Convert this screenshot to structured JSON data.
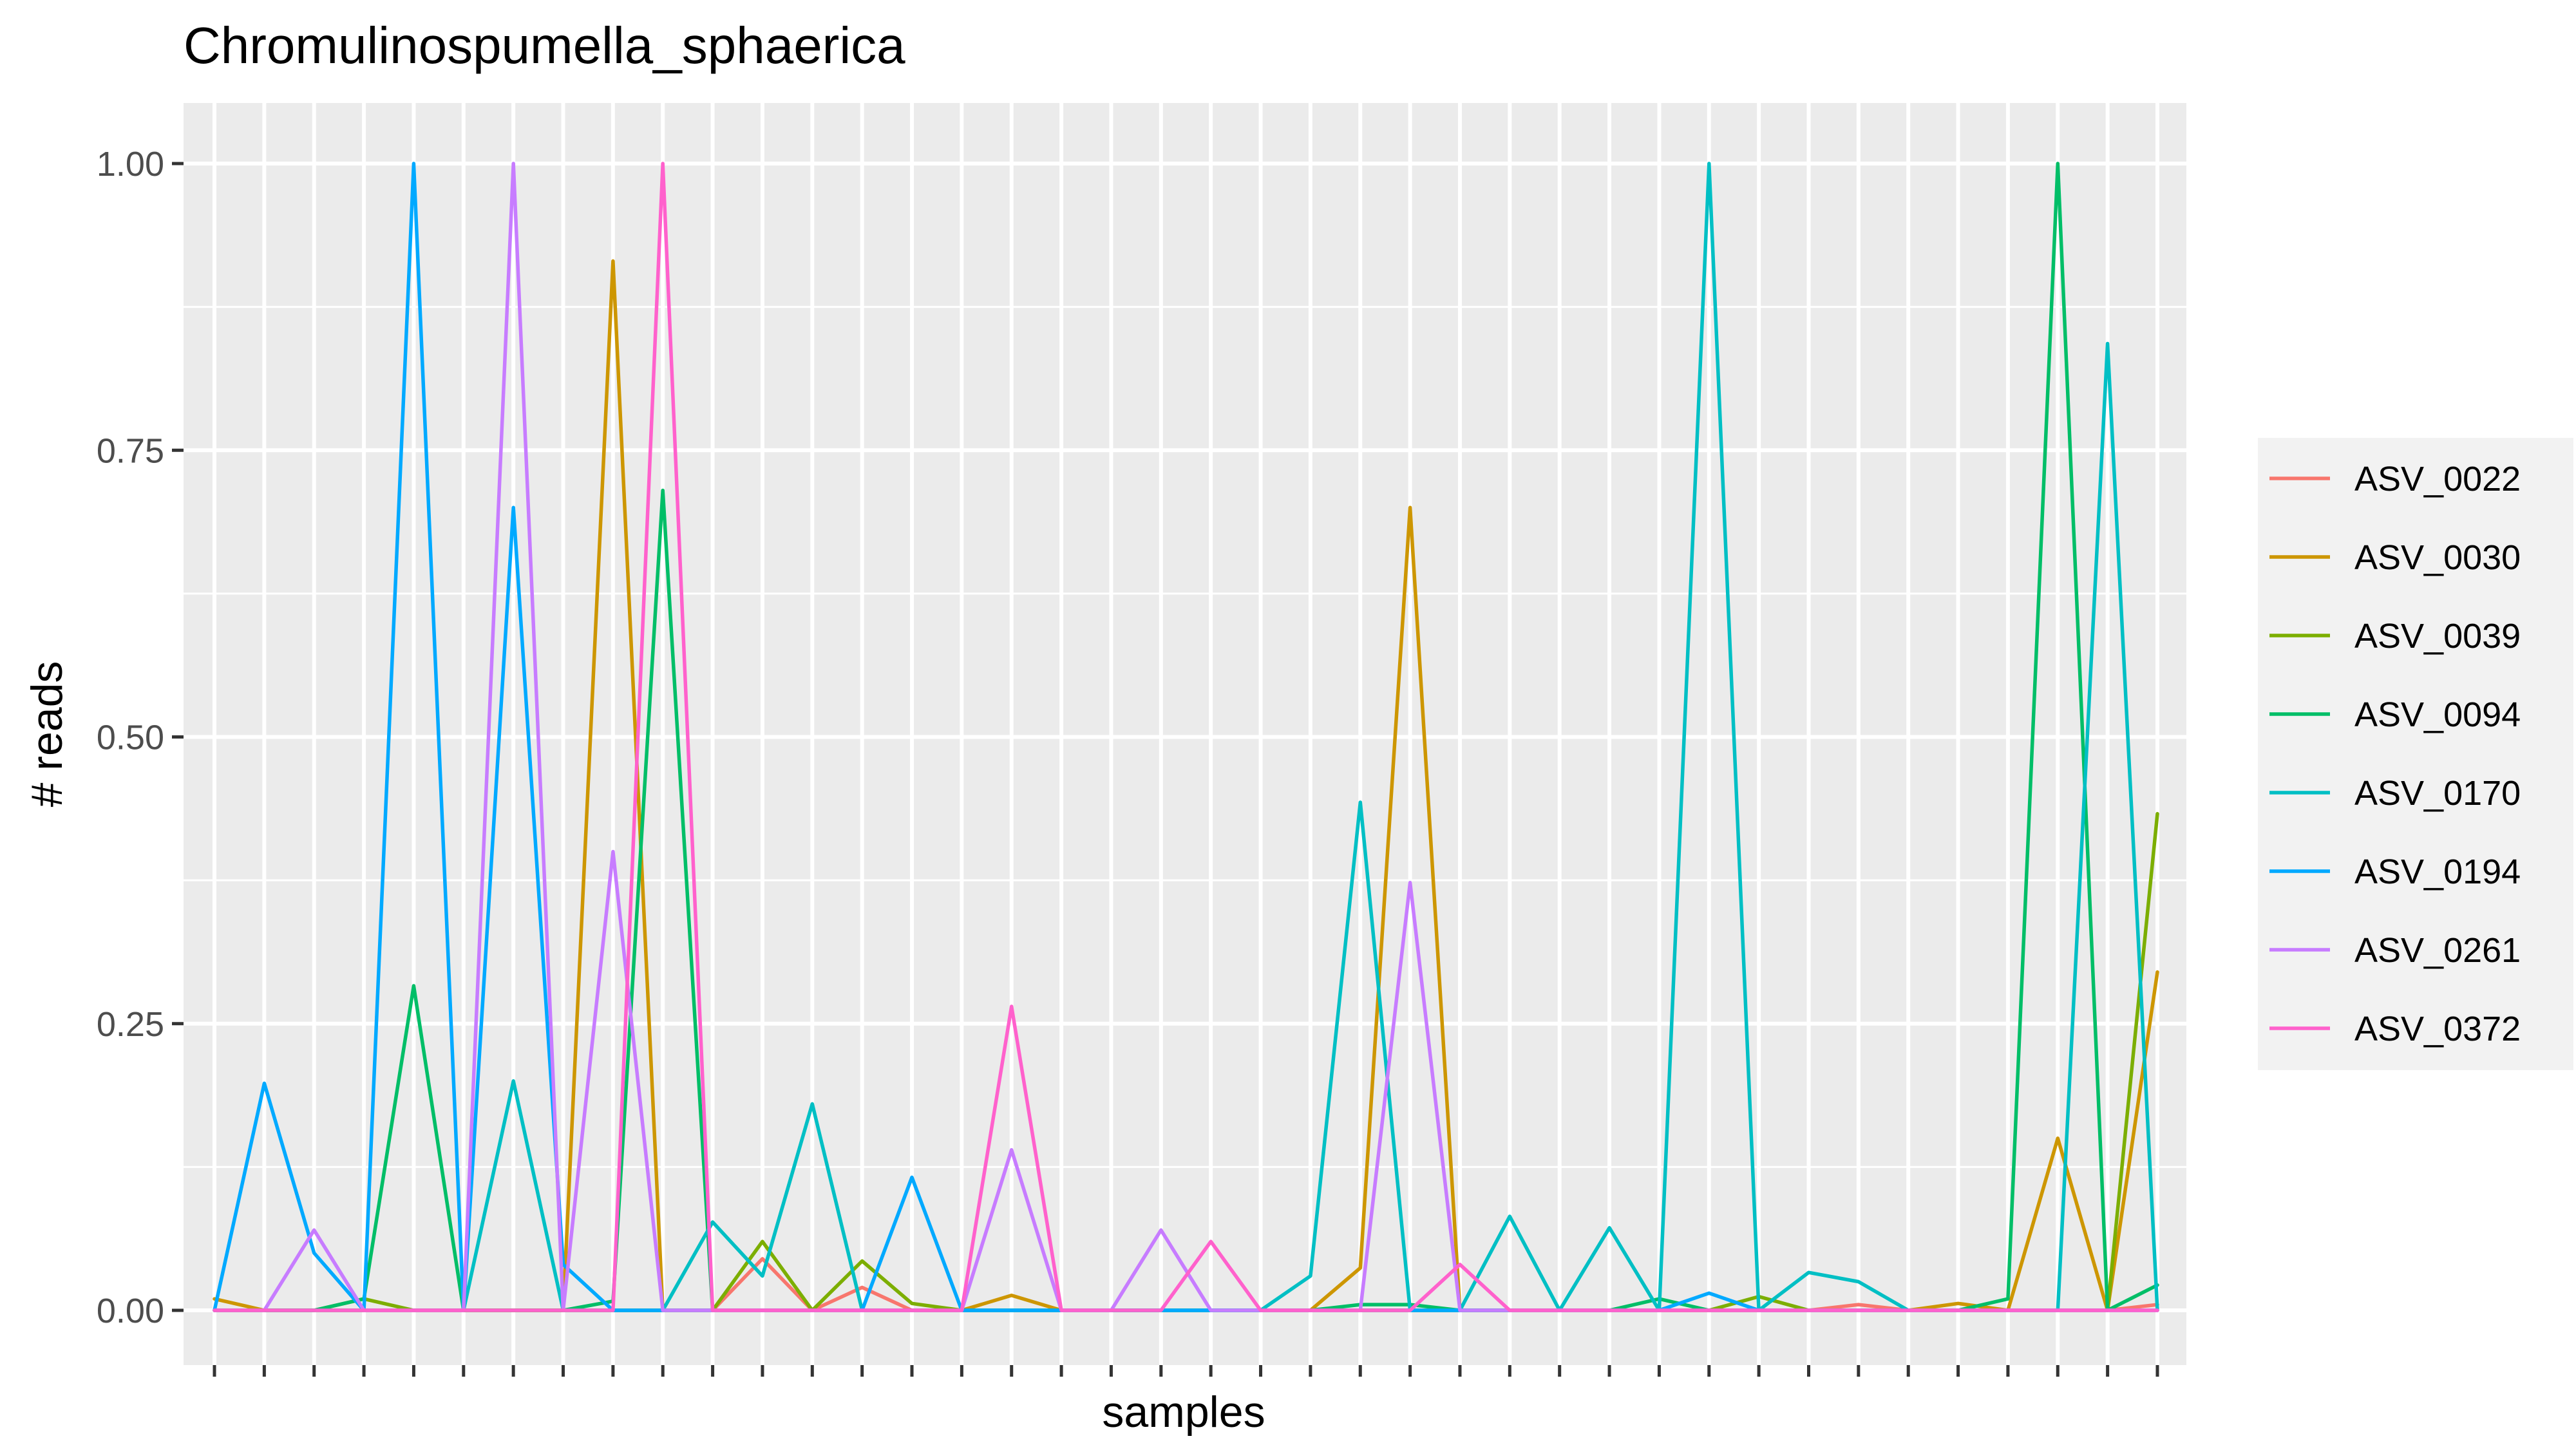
{
  "chart_data": {
    "type": "line",
    "title": "Chromulinospumella_sphaerica",
    "xlabel": "samples",
    "ylabel": "# reads",
    "ylim": [
      0,
      1.05
    ],
    "yticks": [
      0.0,
      0.25,
      0.5,
      0.75,
      1.0
    ],
    "ytick_labels": [
      "0.00",
      "0.25",
      "0.50",
      "0.75",
      "1.00"
    ],
    "n_samples": 40,
    "x_tick_labels_shown": false,
    "grid": true,
    "legend_position": "right",
    "panel_background": "#ebebeb",
    "grid_color": "#ffffff",
    "series": [
      {
        "name": "ASV_0022",
        "color": "#F8766D",
        "values": [
          0.0,
          0.0,
          0.0,
          0.0,
          0.0,
          0.0,
          0.0,
          0.0,
          0.0,
          0.0,
          0.0,
          0.045,
          0.0,
          0.02,
          0.0,
          0.0,
          0.0,
          0.0,
          0.0,
          0.0,
          0.0,
          0.0,
          0.0,
          0.0,
          0.0,
          0.0,
          0.0,
          0.0,
          0.0,
          0.0,
          0.0,
          0.0,
          0.0,
          0.005,
          0.0,
          0.0,
          0.0,
          0.0,
          0.0,
          0.005
        ]
      },
      {
        "name": "ASV_0030",
        "color": "#CD9600",
        "values": [
          0.01,
          0.0,
          0.0,
          0.0,
          0.0,
          0.0,
          0.0,
          0.0,
          0.915,
          0.0,
          0.0,
          0.0,
          0.0,
          0.0,
          0.0,
          0.0,
          0.013,
          0.0,
          0.0,
          0.0,
          0.0,
          0.0,
          0.0,
          0.037,
          0.7,
          0.0,
          0.0,
          0.0,
          0.0,
          0.0,
          0.0,
          0.0,
          0.0,
          0.0,
          0.0,
          0.006,
          0.0,
          0.15,
          0.0,
          0.295
        ]
      },
      {
        "name": "ASV_0039",
        "color": "#7CAE00",
        "values": [
          0.0,
          0.0,
          0.0,
          0.01,
          0.0,
          0.0,
          0.0,
          0.0,
          0.0,
          0.0,
          0.0,
          0.06,
          0.0,
          0.043,
          0.006,
          0.0,
          0.0,
          0.0,
          0.0,
          0.0,
          0.0,
          0.0,
          0.0,
          0.0,
          0.0,
          0.0,
          0.0,
          0.0,
          0.0,
          0.0,
          0.0,
          0.012,
          0.0,
          0.0,
          0.0,
          0.0,
          0.0,
          0.0,
          0.0,
          0.433
        ]
      },
      {
        "name": "ASV_0094",
        "color": "#00BE67",
        "values": [
          0.0,
          0.0,
          0.0,
          0.01,
          0.283,
          0.0,
          0.0,
          0.0,
          0.008,
          0.715,
          0.0,
          0.0,
          0.0,
          0.0,
          0.0,
          0.0,
          0.0,
          0.0,
          0.0,
          0.0,
          0.0,
          0.0,
          0.0,
          0.005,
          0.005,
          0.0,
          0.0,
          0.0,
          0.0,
          0.01,
          0.0,
          0.0,
          0.0,
          0.0,
          0.0,
          0.0,
          0.01,
          1.0,
          0.0,
          0.022
        ]
      },
      {
        "name": "ASV_0170",
        "color": "#00BFC4",
        "values": [
          0.0,
          0.0,
          0.0,
          0.0,
          0.0,
          0.0,
          0.2,
          0.0,
          0.0,
          0.0,
          0.077,
          0.03,
          0.18,
          0.0,
          0.0,
          0.0,
          0.0,
          0.0,
          0.0,
          0.0,
          0.0,
          0.0,
          0.03,
          0.443,
          0.0,
          0.0,
          0.082,
          0.0,
          0.072,
          0.0,
          1.0,
          0.0,
          0.033,
          0.025,
          0.0,
          0.0,
          0.0,
          0.0,
          0.843,
          0.0
        ]
      },
      {
        "name": "ASV_0194",
        "color": "#00A9FF",
        "values": [
          0.0,
          0.198,
          0.05,
          0.0,
          1.0,
          0.0,
          0.7,
          0.04,
          0.0,
          0.0,
          0.0,
          0.0,
          0.0,
          0.0,
          0.116,
          0.0,
          0.0,
          0.0,
          0.0,
          0.0,
          0.0,
          0.0,
          0.0,
          0.0,
          0.0,
          0.0,
          0.0,
          0.0,
          0.0,
          0.0,
          0.015,
          0.0,
          0.0,
          0.0,
          0.0,
          0.0,
          0.0,
          0.0,
          0.0,
          0.0
        ]
      },
      {
        "name": "ASV_0261",
        "color": "#C77CFF",
        "values": [
          0.0,
          0.0,
          0.07,
          0.0,
          0.0,
          0.0,
          1.0,
          0.0,
          0.4,
          0.0,
          0.0,
          0.0,
          0.0,
          0.0,
          0.0,
          0.0,
          0.14,
          0.0,
          0.0,
          0.07,
          0.0,
          0.0,
          0.0,
          0.0,
          0.373,
          0.0,
          0.0,
          0.0,
          0.0,
          0.0,
          0.0,
          0.0,
          0.0,
          0.0,
          0.0,
          0.0,
          0.0,
          0.0,
          0.0,
          0.0
        ]
      },
      {
        "name": "ASV_0372",
        "color": "#FF61CC",
        "values": [
          0.0,
          0.0,
          0.0,
          0.0,
          0.0,
          0.0,
          0.0,
          0.0,
          0.0,
          1.0,
          0.0,
          0.0,
          0.0,
          0.0,
          0.0,
          0.0,
          0.265,
          0.0,
          0.0,
          0.0,
          0.06,
          0.0,
          0.0,
          0.0,
          0.0,
          0.04,
          0.0,
          0.0,
          0.0,
          0.0,
          0.0,
          0.0,
          0.0,
          0.0,
          0.0,
          0.0,
          0.0,
          0.0,
          0.0,
          0.0
        ]
      }
    ]
  }
}
